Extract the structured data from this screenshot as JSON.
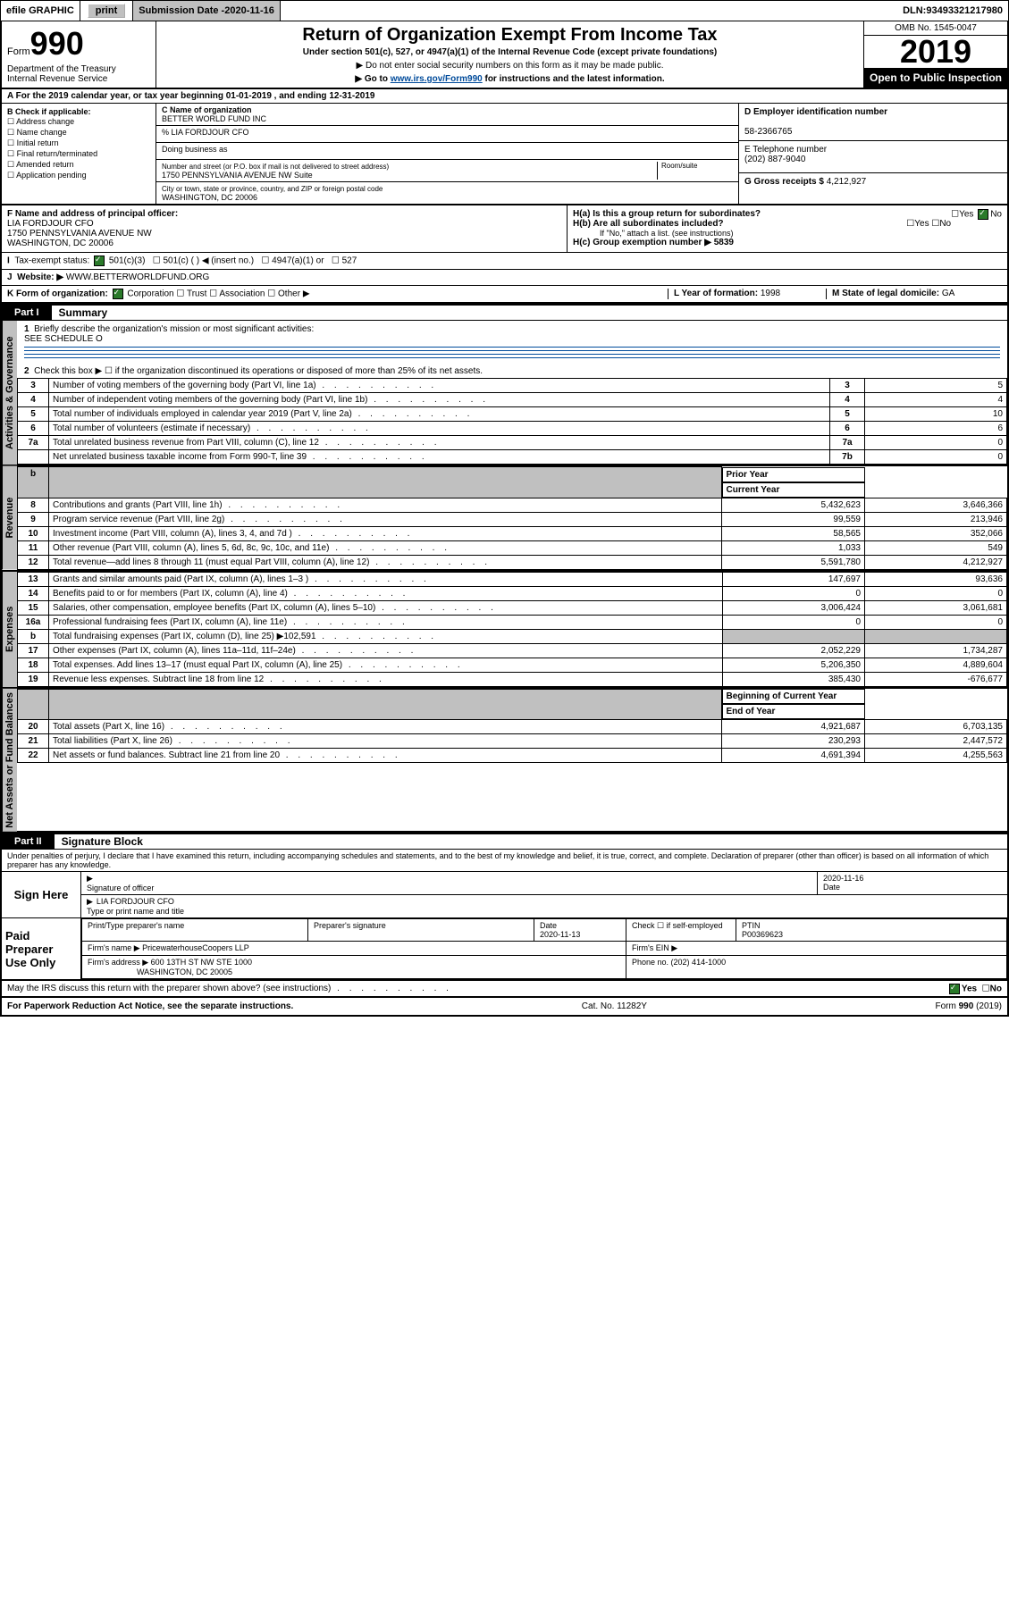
{
  "topbar": {
    "efile": "efile GRAPHIC",
    "print": "print",
    "sub_label": "Submission Date - ",
    "sub_date": "2020-11-16",
    "dln_label": "DLN: ",
    "dln": "93493321217980"
  },
  "header": {
    "form_label": "Form",
    "form_no": "990",
    "dept": "Department of the Treasury",
    "irs": "Internal Revenue Service",
    "title": "Return of Organization Exempt From Income Tax",
    "sub": "Under section 501(c), 527, or 4947(a)(1) of the Internal Revenue Code (except private foundations)",
    "note1": "▶ Do not enter social security numbers on this form as it may be made public.",
    "note2_pre": "▶ Go to ",
    "note2_link": "www.irs.gov/Form990",
    "note2_post": " for instructions and the latest information.",
    "omb": "OMB No. 1545-0047",
    "year": "2019",
    "open": "Open to Public Inspection"
  },
  "rowA": "A For the 2019 calendar year, or tax year beginning 01-01-2019   , and ending 12-31-2019",
  "colB": {
    "title": "B Check if applicable:",
    "items": [
      "Address change",
      "Name change",
      "Initial return",
      "Final return/terminated",
      "Amended return",
      "Application pending"
    ]
  },
  "colC": {
    "name_lbl": "C Name of organization",
    "name": "BETTER WORLD FUND INC",
    "care": "% LIA FORDJOUR CFO",
    "dba_lbl": "Doing business as",
    "addr_lbl": "Number and street (or P.O. box if mail is not delivered to street address)",
    "room_lbl": "Room/suite",
    "addr": "1750 PENNSYLVANIA AVENUE NW Suite",
    "city_lbl": "City or town, state or province, country, and ZIP or foreign postal code",
    "city": "WASHINGTON, DC  20006"
  },
  "colD": {
    "ein_lbl": "D Employer identification number",
    "ein": "58-2366765",
    "tel_lbl": "E Telephone number",
    "tel": "(202) 887-9040",
    "gross_lbl": "G Gross receipts $ ",
    "gross": "4,212,927"
  },
  "rowF": {
    "f_lbl": "F  Name and address of principal officer:",
    "f_name": "LIA FORDJOUR CFO",
    "f_addr1": "1750 PENNSYLVANIA AVENUE NW",
    "f_addr2": "WASHINGTON, DC  20006",
    "ha": "H(a)  Is this a group return for subordinates?",
    "ha_yes": "Yes",
    "ha_no": "No",
    "hb": "H(b)  Are all subordinates included?",
    "hb_note": "If \"No,\" attach a list. (see instructions)",
    "hc": "H(c)  Group exemption number ▶  5839"
  },
  "rowI": {
    "lbl": "Tax-exempt status:",
    "o1": "501(c)(3)",
    "o2": "501(c) (   ) ◀ (insert no.)",
    "o3": "4947(a)(1) or",
    "o4": "527"
  },
  "rowJ": {
    "lbl": "Website: ▶",
    "val": "WWW.BETTERWORLDFUND.ORG"
  },
  "rowK": {
    "lbl": "K Form of organization:",
    "o1": "Corporation",
    "o2": "Trust",
    "o3": "Association",
    "o4": "Other ▶",
    "l_lbl": "L Year of formation: ",
    "l_val": "1998",
    "m_lbl": "M State of legal domicile: ",
    "m_val": "GA"
  },
  "part1": {
    "tab": "Part I",
    "title": "Summary"
  },
  "vtabs": {
    "gov": "Activities & Governance",
    "rev": "Revenue",
    "exp": "Expenses",
    "net": "Net Assets or Fund Balances"
  },
  "gov": {
    "l1": "Briefly describe the organization's mission or most significant activities:",
    "l1v": "SEE SCHEDULE O",
    "l2": "Check this box ▶ ☐  if the organization discontinued its operations or disposed of more than 25% of its net assets.",
    "rows": [
      {
        "n": "3",
        "t": "Number of voting members of the governing body (Part VI, line 1a)",
        "b": "3",
        "v": "5"
      },
      {
        "n": "4",
        "t": "Number of independent voting members of the governing body (Part VI, line 1b)",
        "b": "4",
        "v": "4"
      },
      {
        "n": "5",
        "t": "Total number of individuals employed in calendar year 2019 (Part V, line 2a)",
        "b": "5",
        "v": "10"
      },
      {
        "n": "6",
        "t": "Total number of volunteers (estimate if necessary)",
        "b": "6",
        "v": "6"
      },
      {
        "n": "7a",
        "t": "Total unrelated business revenue from Part VIII, column (C), line 12",
        "b": "7a",
        "v": "0"
      },
      {
        "n": "",
        "t": "Net unrelated business taxable income from Form 990-T, line 39",
        "b": "7b",
        "v": "0"
      }
    ]
  },
  "twoColHdr": {
    "b": "b",
    "py": "Prior Year",
    "cy": "Current Year"
  },
  "rev": [
    {
      "n": "8",
      "t": "Contributions and grants (Part VIII, line 1h)",
      "p": "5,432,623",
      "c": "3,646,366"
    },
    {
      "n": "9",
      "t": "Program service revenue (Part VIII, line 2g)",
      "p": "99,559",
      "c": "213,946"
    },
    {
      "n": "10",
      "t": "Investment income (Part VIII, column (A), lines 3, 4, and 7d )",
      "p": "58,565",
      "c": "352,066"
    },
    {
      "n": "11",
      "t": "Other revenue (Part VIII, column (A), lines 5, 6d, 8c, 9c, 10c, and 11e)",
      "p": "1,033",
      "c": "549"
    },
    {
      "n": "12",
      "t": "Total revenue—add lines 8 through 11 (must equal Part VIII, column (A), line 12)",
      "p": "5,591,780",
      "c": "4,212,927"
    }
  ],
  "exp": [
    {
      "n": "13",
      "t": "Grants and similar amounts paid (Part IX, column (A), lines 1–3 )",
      "p": "147,697",
      "c": "93,636"
    },
    {
      "n": "14",
      "t": "Benefits paid to or for members (Part IX, column (A), line 4)",
      "p": "0",
      "c": "0"
    },
    {
      "n": "15",
      "t": "Salaries, other compensation, employee benefits (Part IX, column (A), lines 5–10)",
      "p": "3,006,424",
      "c": "3,061,681"
    },
    {
      "n": "16a",
      "t": "Professional fundraising fees (Part IX, column (A), line 11e)",
      "p": "0",
      "c": "0"
    },
    {
      "n": "b",
      "t": "Total fundraising expenses (Part IX, column (D), line 25) ▶102,591",
      "p": "",
      "c": "",
      "grey": true
    },
    {
      "n": "17",
      "t": "Other expenses (Part IX, column (A), lines 11a–11d, 11f–24e)",
      "p": "2,052,229",
      "c": "1,734,287"
    },
    {
      "n": "18",
      "t": "Total expenses. Add lines 13–17 (must equal Part IX, column (A), line 25)",
      "p": "5,206,350",
      "c": "4,889,604"
    },
    {
      "n": "19",
      "t": "Revenue less expenses. Subtract line 18 from line 12",
      "p": "385,430",
      "c": "-676,677"
    }
  ],
  "netHdr": {
    "py": "Beginning of Current Year",
    "cy": "End of Year"
  },
  "net": [
    {
      "n": "20",
      "t": "Total assets (Part X, line 16)",
      "p": "4,921,687",
      "c": "6,703,135"
    },
    {
      "n": "21",
      "t": "Total liabilities (Part X, line 26)",
      "p": "230,293",
      "c": "2,447,572"
    },
    {
      "n": "22",
      "t": "Net assets or fund balances. Subtract line 21 from line 20",
      "p": "4,691,394",
      "c": "4,255,563"
    }
  ],
  "part2": {
    "tab": "Part II",
    "title": "Signature Block"
  },
  "perjury": "Under penalties of perjury, I declare that I have examined this return, including accompanying schedules and statements, and to the best of my knowledge and belief, it is true, correct, and complete. Declaration of preparer (other than officer) is based on all information of which preparer has any knowledge.",
  "sign": {
    "here": "Sign Here",
    "sig_lbl": "Signature of officer",
    "date": "2020-11-16",
    "date_lbl": "Date",
    "name": "LIA FORDJOUR  CFO",
    "name_lbl": "Type or print name and title"
  },
  "paid": {
    "lbl": "Paid Preparer Use Only",
    "h1": "Print/Type preparer's name",
    "h2": "Preparer's signature",
    "h3": "Date",
    "h3v": "2020-11-13",
    "h4": "Check ☐ if self-employed",
    "h5": "PTIN",
    "h5v": "P00369623",
    "firm_lbl": "Firm's name     ▶",
    "firm": "PricewaterhouseCoopers LLP",
    "ein_lbl": "Firm's EIN ▶",
    "addr_lbl": "Firm's address ▶",
    "addr1": "600 13TH ST NW STE 1000",
    "addr2": "WASHINGTON, DC  20005",
    "ph_lbl": "Phone no. ",
    "ph": "(202) 414-1000"
  },
  "discuss": {
    "q": "May the IRS discuss this return with the preparer shown above? (see instructions)",
    "yes": "Yes",
    "no": "No"
  },
  "footer": {
    "l": "For Paperwork Reduction Act Notice, see the separate instructions.",
    "m": "Cat. No. 11282Y",
    "r": "Form 990 (2019)"
  }
}
